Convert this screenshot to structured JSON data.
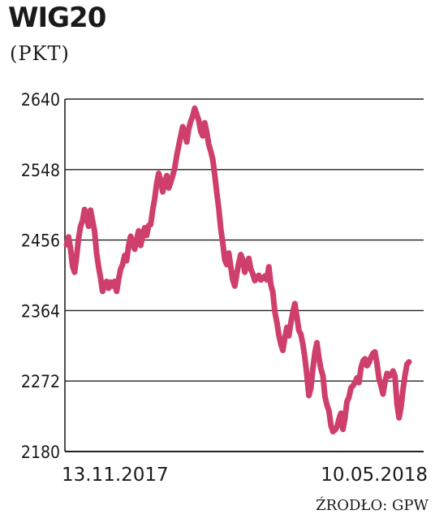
{
  "title": "WIG20",
  "unit": "(PKT)",
  "source": "ŹRODŁO: GPW",
  "colors": {
    "line": "#cf3f6b",
    "grid": "#222222"
  },
  "chart_data": {
    "type": "line",
    "title": "WIG20",
    "ylabel": "(PKT)",
    "ylim": [
      2180,
      2640
    ],
    "yticks": [
      2180,
      2272,
      2364,
      2456,
      2548,
      2640
    ],
    "x_start_label": "13.11.2017",
    "x_end_label": "10.05.2018",
    "grid": "horizontal",
    "series": [
      {
        "values": [
          2450,
          2460,
          2445,
          2422,
          2414,
          2434,
          2458,
          2474,
          2481,
          2496,
          2488,
          2474,
          2495,
          2481,
          2468,
          2439,
          2421,
          2406,
          2389,
          2397,
          2402,
          2393,
          2401,
          2396,
          2402,
          2389,
          2405,
          2418,
          2424,
          2436,
          2429,
          2449,
          2461,
          2452,
          2444,
          2457,
          2468,
          2449,
          2461,
          2472,
          2462,
          2475,
          2476,
          2495,
          2510,
          2530,
          2543,
          2534,
          2519,
          2530,
          2540,
          2524,
          2531,
          2540,
          2550,
          2566,
          2579,
          2592,
          2604,
          2596,
          2584,
          2601,
          2611,
          2618,
          2628,
          2620,
          2612,
          2598,
          2592,
          2609,
          2597,
          2581,
          2572,
          2561,
          2541,
          2518,
          2497,
          2471,
          2452,
          2430,
          2424,
          2439,
          2421,
          2404,
          2396,
          2412,
          2426,
          2437,
          2430,
          2414,
          2424,
          2432,
          2418,
          2412,
          2403,
          2407,
          2410,
          2404,
          2406,
          2409,
          2404,
          2421,
          2398,
          2388,
          2362,
          2349,
          2332,
          2320,
          2312,
          2329,
          2342,
          2331,
          2348,
          2362,
          2373,
          2356,
          2338,
          2333,
          2320,
          2302,
          2280,
          2253,
          2263,
          2288,
          2309,
          2322,
          2303,
          2288,
          2279,
          2252,
          2241,
          2233,
          2214,
          2206,
          2208,
          2212,
          2222,
          2230,
          2209,
          2223,
          2245,
          2251,
          2263,
          2266,
          2270,
          2276,
          2270,
          2289,
          2298,
          2301,
          2292,
          2296,
          2303,
          2308,
          2310,
          2295,
          2275,
          2266,
          2255,
          2271,
          2282,
          2278,
          2280,
          2285,
          2278,
          2242,
          2224,
          2238,
          2261,
          2280,
          2294,
          2297
        ]
      }
    ]
  }
}
